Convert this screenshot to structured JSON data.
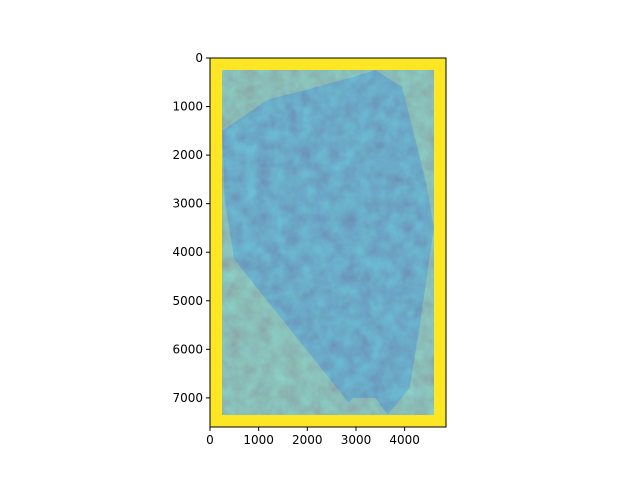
{
  "chart_data": {
    "type": "heatmap",
    "title": "",
    "xlabel": "",
    "ylabel": "",
    "colormap": "viridis",
    "background_value_color": "#fde725",
    "xlim": [
      0,
      4850
    ],
    "ylim": [
      7600,
      0
    ],
    "x_ticks": [
      0,
      1000,
      2000,
      3000,
      4000
    ],
    "y_ticks": [
      0,
      1000,
      2000,
      3000,
      4000,
      5000,
      6000,
      7000
    ],
    "x_tick_labels": [
      "0",
      "1000",
      "2000",
      "3000",
      "4000"
    ],
    "y_tick_labels": [
      "0",
      "1000",
      "2000",
      "3000",
      "4000",
      "5000",
      "6000",
      "7000"
    ],
    "valid_region_outline": [
      [
        3400,
        250
      ],
      [
        3950,
        600
      ],
      [
        4450,
        2600
      ],
      [
        4600,
        3500
      ],
      [
        4300,
        5600
      ],
      [
        4100,
        6800
      ],
      [
        3650,
        7350
      ],
      [
        3400,
        7000
      ],
      [
        2950,
        7000
      ],
      [
        2850,
        7100
      ],
      [
        500,
        4150
      ],
      [
        300,
        2900
      ],
      [
        250,
        1500
      ],
      [
        1200,
        850
      ],
      [
        2000,
        650
      ],
      [
        2900,
        400
      ]
    ],
    "grid": false
  }
}
